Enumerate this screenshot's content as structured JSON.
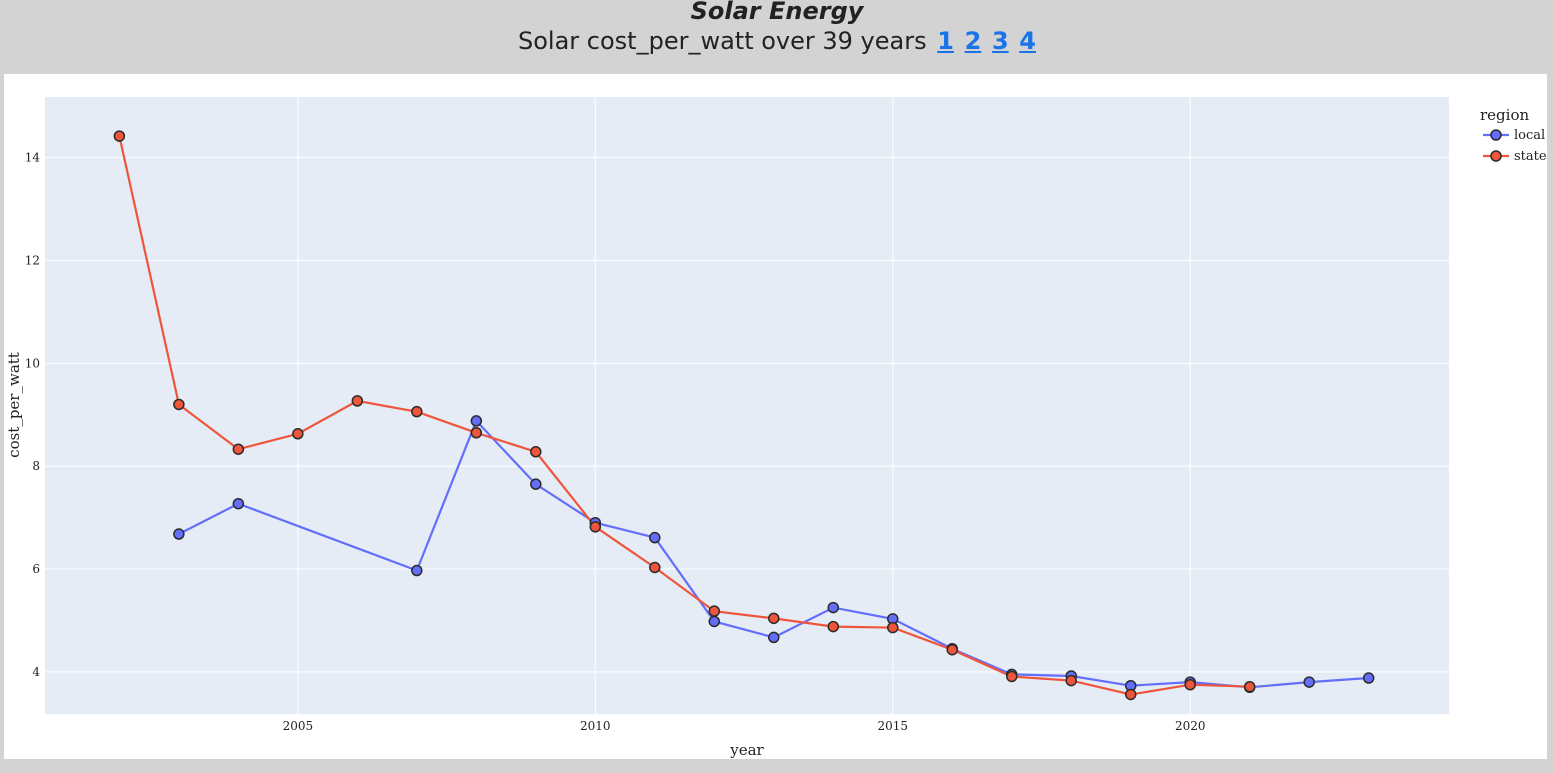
{
  "header": {
    "app_title": "Solar Energy",
    "subtitle": "Solar cost_per_watt over 39 years",
    "links": [
      "1",
      "2",
      "3",
      "4"
    ]
  },
  "chart_data": {
    "type": "line",
    "title": "",
    "xlabel": "year",
    "ylabel": "cost_per_watt",
    "xlim": [
      2000.75,
      2024.35
    ],
    "ylim": [
      3.18,
      15.18
    ],
    "x_ticks": [
      2005,
      2010,
      2015,
      2020
    ],
    "y_ticks": [
      4,
      6,
      8,
      10,
      12,
      14
    ],
    "grid": true,
    "legend": {
      "title": "region",
      "position": "right"
    },
    "series": [
      {
        "name": "local",
        "color": "#636efa",
        "points": [
          [
            2003,
            6.68
          ],
          [
            2004,
            7.27
          ],
          [
            2007,
            5.97
          ],
          [
            2008,
            8.88
          ],
          [
            2009,
            7.65
          ],
          [
            2010,
            6.9
          ],
          [
            2011,
            6.61
          ],
          [
            2012,
            4.98
          ],
          [
            2013,
            4.67
          ],
          [
            2014,
            5.25
          ],
          [
            2015,
            5.03
          ],
          [
            2016,
            4.45
          ],
          [
            2017,
            3.95
          ],
          [
            2018,
            3.92
          ],
          [
            2019,
            3.73
          ],
          [
            2020,
            3.8
          ],
          [
            2021,
            3.7
          ],
          [
            2022,
            3.8
          ],
          [
            2023,
            3.88
          ]
        ]
      },
      {
        "name": "state",
        "color": "#ef553b",
        "points": [
          [
            2002,
            14.42
          ],
          [
            2003,
            9.2
          ],
          [
            2004,
            8.33
          ],
          [
            2005,
            8.63
          ],
          [
            2006,
            9.27
          ],
          [
            2007,
            9.06
          ],
          [
            2008,
            8.65
          ],
          [
            2009,
            8.28
          ],
          [
            2010,
            6.82
          ],
          [
            2011,
            6.03
          ],
          [
            2012,
            5.18
          ],
          [
            2013,
            5.04
          ],
          [
            2014,
            4.88
          ],
          [
            2015,
            4.86
          ],
          [
            2016,
            4.43
          ],
          [
            2017,
            3.91
          ],
          [
            2018,
            3.83
          ],
          [
            2019,
            3.56
          ],
          [
            2020,
            3.75
          ],
          [
            2021,
            3.71
          ]
        ]
      }
    ]
  }
}
